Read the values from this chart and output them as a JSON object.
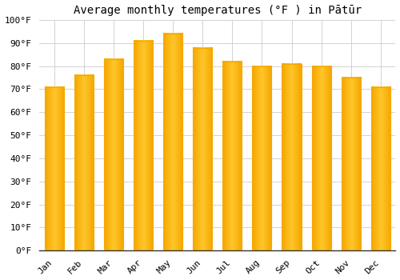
{
  "title": "Average monthly temperatures (°F ) in Pātūr",
  "months": [
    "Jan",
    "Feb",
    "Mar",
    "Apr",
    "May",
    "Jun",
    "Jul",
    "Aug",
    "Sep",
    "Oct",
    "Nov",
    "Dec"
  ],
  "values": [
    71,
    76,
    83,
    91,
    94,
    88,
    82,
    80,
    81,
    80,
    75,
    71
  ],
  "bar_color_center": "#FFC62A",
  "bar_color_edge": "#F5A800",
  "ylim": [
    0,
    100
  ],
  "yticks": [
    0,
    10,
    20,
    30,
    40,
    50,
    60,
    70,
    80,
    90,
    100
  ],
  "ytick_labels": [
    "0°F",
    "10°F",
    "20°F",
    "30°F",
    "40°F",
    "50°F",
    "60°F",
    "70°F",
    "80°F",
    "90°F",
    "100°F"
  ],
  "background_color": "#FFFFFF",
  "grid_color": "#CCCCCC",
  "title_fontsize": 10,
  "tick_fontsize": 8,
  "bar_width": 0.65
}
